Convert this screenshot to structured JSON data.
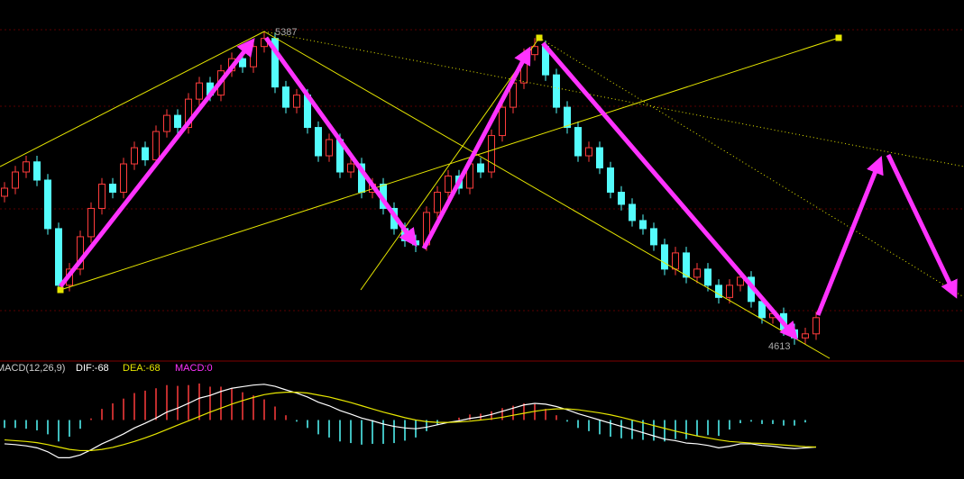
{
  "chart_data": {
    "type": "candlestick",
    "ylim": [
      4575,
      5465
    ],
    "up_color": "#ff3c3c",
    "down_color": "#54fcfc",
    "open": [
      4980,
      5000,
      5040,
      5065,
      5020,
      4900,
      4760,
      4800,
      4880,
      4950,
      5010,
      4990,
      5060,
      5100,
      5070,
      5140,
      5180,
      5150,
      5220,
      5260,
      5230,
      5290,
      5320,
      5300,
      5350,
      5370,
      5250,
      5200,
      5230,
      5150,
      5080,
      5120,
      5040,
      5060,
      4990,
      5010,
      4950,
      4900,
      4870,
      4860,
      4940,
      4990,
      5030,
      5000,
      5060,
      5040,
      5130,
      5200,
      5260,
      5330,
      5350,
      5280,
      5200,
      5150,
      5080,
      5100,
      5050,
      4990,
      4960,
      4920,
      4900,
      4860,
      4800,
      4840,
      4780,
      4800,
      4760,
      4730,
      4760,
      4780,
      4720,
      4680,
      4690,
      4650,
      4630,
      4640
    ],
    "high": [
      5015,
      5055,
      5080,
      5080,
      5035,
      4915,
      4815,
      4895,
      4965,
      5025,
      5025,
      5075,
      5115,
      5115,
      5155,
      5195,
      5195,
      5235,
      5275,
      5275,
      5305,
      5335,
      5335,
      5365,
      5387,
      5385,
      5265,
      5245,
      5245,
      5165,
      5135,
      5135,
      5075,
      5075,
      5025,
      5025,
      4965,
      4915,
      4885,
      4955,
      5005,
      5045,
      5045,
      5075,
      5075,
      5145,
      5215,
      5275,
      5345,
      5371,
      5365,
      5295,
      5215,
      5165,
      5115,
      5115,
      5065,
      5005,
      4975,
      4935,
      4915,
      4875,
      4855,
      4855,
      4815,
      4815,
      4775,
      4775,
      4795,
      4795,
      4735,
      4705,
      4705,
      4665,
      4655,
      4695
    ],
    "low": [
      4965,
      4985,
      5025,
      5005,
      4885,
      4745,
      4745,
      4785,
      4865,
      4935,
      4975,
      4975,
      5045,
      5055,
      5055,
      5125,
      5135,
      5135,
      5205,
      5215,
      5215,
      5275,
      5285,
      5285,
      5335,
      5235,
      5185,
      5185,
      5135,
      5065,
      5065,
      5025,
      5025,
      4975,
      4975,
      4935,
      4885,
      4855,
      4842,
      4845,
      4925,
      4975,
      4985,
      4985,
      5025,
      5025,
      5115,
      5185,
      5245,
      5315,
      5265,
      5185,
      5135,
      5065,
      5065,
      5035,
      4975,
      4945,
      4905,
      4885,
      4845,
      4785,
      4785,
      4765,
      4765,
      4745,
      4715,
      4715,
      4745,
      4705,
      4665,
      4665,
      4635,
      4613,
      4615,
      4625
    ],
    "close": [
      5000,
      5040,
      5065,
      5020,
      4900,
      4760,
      4800,
      4880,
      4950,
      5010,
      4990,
      5060,
      5100,
      5070,
      5140,
      5180,
      5150,
      5220,
      5260,
      5230,
      5290,
      5320,
      5300,
      5350,
      5370,
      5250,
      5200,
      5230,
      5150,
      5080,
      5120,
      5040,
      5060,
      4990,
      5010,
      4950,
      4900,
      4870,
      4860,
      4940,
      4990,
      5030,
      5000,
      5060,
      5040,
      5130,
      5200,
      5260,
      5330,
      5350,
      5280,
      5200,
      5150,
      5080,
      5100,
      5050,
      4990,
      4960,
      4920,
      4900,
      4860,
      4800,
      4840,
      4780,
      4800,
      4760,
      4730,
      4760,
      4780,
      4720,
      4680,
      4690,
      4650,
      4630,
      4640,
      4680
    ],
    "high_label": "5387",
    "low_label": "4613",
    "macd": {
      "title": "MACD(12,26,9)",
      "dif_label": "DIF:-68",
      "dea_label": "DEA:-68",
      "macd_label": "MACD:0",
      "ylim": [
        -110,
        110
      ],
      "dif_color": "#ffffff",
      "dea_color": "#e6e600",
      "label_macd_color": "#ff33ff",
      "dif": [
        -60,
        -62,
        -65,
        -70,
        -80,
        -95,
        -95,
        -88,
        -75,
        -60,
        -48,
        -35,
        -20,
        -8,
        5,
        20,
        30,
        42,
        55,
        62,
        72,
        80,
        84,
        88,
        90,
        85,
        76,
        68,
        58,
        45,
        36,
        24,
        15,
        5,
        -2,
        -10,
        -16,
        -20,
        -22,
        -18,
        -12,
        -6,
        -2,
        4,
        8,
        14,
        22,
        30,
        38,
        42,
        40,
        34,
        26,
        16,
        8,
        0,
        -8,
        -16,
        -24,
        -32,
        -40,
        -48,
        -52,
        -58,
        -60,
        -64,
        -70,
        -66,
        -60,
        -60,
        -64,
        -66,
        -70,
        -72,
        -70,
        -68
      ],
      "dea": [
        -50,
        -52,
        -54,
        -57,
        -62,
        -68,
        -74,
        -77,
        -77,
        -74,
        -69,
        -62,
        -54,
        -45,
        -35,
        -24,
        -13,
        -2,
        9,
        20,
        30,
        40,
        49,
        57,
        64,
        68,
        70,
        70,
        68,
        63,
        58,
        51,
        44,
        36,
        28,
        20,
        13,
        6,
        0,
        -4,
        -6,
        -6,
        -5,
        -3,
        0,
        3,
        7,
        12,
        17,
        22,
        26,
        28,
        28,
        26,
        22,
        18,
        13,
        7,
        0,
        -7,
        -14,
        -21,
        -28,
        -34,
        -40,
        -45,
        -50,
        -54,
        -56,
        -58,
        -59,
        -61,
        -63,
        -65,
        -67,
        -68
      ],
      "hist": [
        -20,
        -20,
        -22,
        -26,
        -36,
        -54,
        -42,
        -22,
        4,
        28,
        42,
        54,
        68,
        74,
        80,
        88,
        86,
        88,
        92,
        84,
        84,
        80,
        70,
        62,
        52,
        34,
        12,
        -4,
        -20,
        -36,
        -44,
        -54,
        -58,
        -62,
        -60,
        -60,
        -58,
        -52,
        -44,
        -28,
        -12,
        0,
        6,
        14,
        16,
        22,
        30,
        36,
        42,
        40,
        28,
        12,
        -4,
        -20,
        -28,
        -36,
        -42,
        -46,
        -48,
        -50,
        -52,
        -54,
        -48,
        -48,
        -40,
        -38,
        -40,
        -24,
        -8,
        -4,
        -10,
        -10,
        -14,
        -14,
        -6,
        0
      ]
    }
  }
}
